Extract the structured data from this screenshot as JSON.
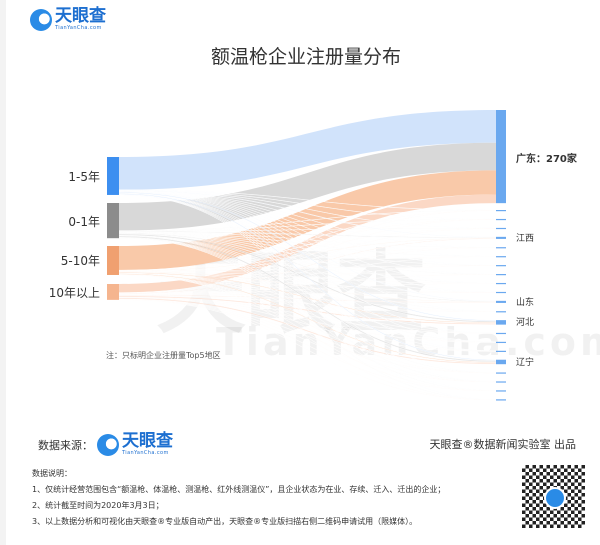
{
  "brand": {
    "name": "天眼查",
    "domain": "TianYanCha.com"
  },
  "watermark": {
    "cn": "天眼查",
    "en": "TianYanCha.com"
  },
  "chart_data": {
    "type": "sankey",
    "title": "额温枪企业注册量分布",
    "note": "注：只标明企业注册量Top5地区",
    "sources": [
      {
        "name": "1-5年",
        "value": 110,
        "color": "#3d8ff0",
        "link_color": "#cfe2fb"
      },
      {
        "name": "0-1年",
        "value": 102,
        "color": "#8c8c8c",
        "link_color": "#d6d6d6"
      },
      {
        "name": "5-10年",
        "value": 84,
        "color": "#f0a070",
        "link_color": "#f9c6a4"
      },
      {
        "name": "10年以上",
        "value": 46,
        "color": "#f5b58f",
        "link_color": "#fbd6c2"
      }
    ],
    "targets": [
      {
        "name": "广东",
        "label": "广东：270家",
        "value": 270,
        "flows": [
          95,
          80,
          70,
          25
        ]
      },
      {
        "name": "",
        "value": 2
      },
      {
        "name": "",
        "value": 2
      },
      {
        "name": "",
        "value": 2
      },
      {
        "name": "江西",
        "label": "江西",
        "value": 6
      },
      {
        "name": "",
        "value": 2
      },
      {
        "name": "",
        "value": 2
      },
      {
        "name": "",
        "value": 2
      },
      {
        "name": "",
        "value": 2
      },
      {
        "name": "",
        "value": 2
      },
      {
        "name": "",
        "value": 2
      },
      {
        "name": "山东",
        "label": "山东",
        "value": 6
      },
      {
        "name": "",
        "value": 2
      },
      {
        "name": "河北",
        "label": "河北",
        "value": 13
      },
      {
        "name": "",
        "value": 2
      },
      {
        "name": "",
        "value": 2
      },
      {
        "name": "",
        "value": 2
      },
      {
        "name": "辽宁",
        "label": "辽宁",
        "value": 13
      },
      {
        "name": "",
        "value": 2
      },
      {
        "name": "",
        "value": 2
      },
      {
        "name": "",
        "value": 2
      },
      {
        "name": "",
        "value": 2
      }
    ],
    "target_color": "#6aa8ef"
  },
  "footer": {
    "source_label": "数据来源：",
    "credit": "天眼查®数据新闻实验室 出品",
    "explain_title": "数据说明：",
    "explain": [
      "1、仅统计经营范围包含“额温枪、体温枪、测温枪、红外线测温仪”，且企业状态为在业、存续、迁入、迁出的企业；",
      "2、统计截至时间为2020年3月3日；",
      "3、以上数据分析和可视化由天眼查®专业版自动产出，天眼查®专业版扫描右侧二维码申请试用（限媒体）。"
    ]
  }
}
